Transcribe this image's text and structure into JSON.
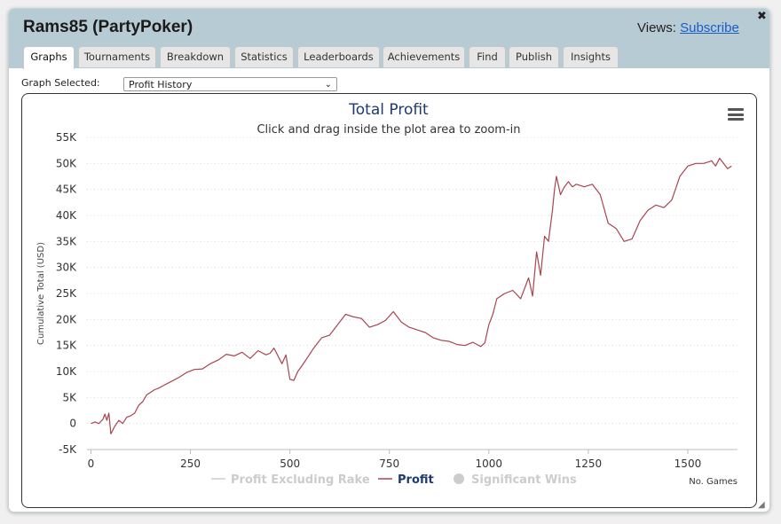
{
  "window": {
    "title": "Rams85 (PartyPoker)",
    "views_label": "Views:",
    "subscribe_link": "Subscribe",
    "close_glyph": "✖"
  },
  "tabs": [
    {
      "label": "Graphs",
      "active": true
    },
    {
      "label": "Tournaments"
    },
    {
      "label": "Breakdown"
    },
    {
      "label": "Statistics"
    },
    {
      "label": "Leaderboards"
    },
    {
      "label": "Achievements"
    },
    {
      "label": "Find"
    },
    {
      "label": "Publish"
    },
    {
      "label": "Insights"
    }
  ],
  "graph_selector": {
    "label": "Graph Selected:",
    "value": "Profit History"
  },
  "chart_data": {
    "type": "line",
    "title": "Total Profit",
    "subtitle": "Click and drag inside the plot area to zoom-in",
    "ylabel": "Cumulative Total (USD)",
    "xlabel": "No. Games",
    "ylim": [
      -5000,
      55000
    ],
    "xlim": [
      -10,
      1625
    ],
    "y_ticks": [
      -5000,
      0,
      5000,
      10000,
      15000,
      20000,
      25000,
      30000,
      35000,
      40000,
      45000,
      50000,
      55000
    ],
    "y_tick_labels": [
      "-5K",
      "0",
      "5K",
      "10K",
      "15K",
      "20K",
      "25K",
      "30K",
      "35K",
      "40K",
      "45K",
      "50K",
      "55K"
    ],
    "x_ticks": [
      0,
      250,
      500,
      750,
      1000,
      1250,
      1500
    ],
    "x_tick_labels": [
      "0",
      "250",
      "500",
      "750",
      "1000",
      "1250",
      "1500"
    ],
    "grid": "horizontal dotted",
    "legend_position": "bottom",
    "legend": [
      {
        "name": "Profit Excluding Rake",
        "color": "#cccccc",
        "symbol": "line",
        "hidden": true
      },
      {
        "name": "Profit",
        "color": "#a84550",
        "symbol": "line",
        "hidden": false
      },
      {
        "name": "Significant Wins",
        "color": "#cccccc",
        "symbol": "circle",
        "hidden": true
      }
    ],
    "series": [
      {
        "name": "Profit",
        "color": "#a84550",
        "x": [
          0,
          10,
          20,
          30,
          35,
          40,
          45,
          50,
          60,
          70,
          80,
          90,
          100,
          110,
          120,
          130,
          140,
          150,
          160,
          170,
          180,
          200,
          220,
          240,
          260,
          280,
          300,
          320,
          340,
          360,
          380,
          400,
          420,
          440,
          450,
          460,
          480,
          490,
          500,
          510,
          520,
          540,
          560,
          580,
          600,
          620,
          640,
          660,
          680,
          700,
          720,
          740,
          760,
          780,
          800,
          820,
          840,
          860,
          880,
          900,
          920,
          940,
          960,
          970,
          980,
          990,
          1000,
          1010,
          1020,
          1040,
          1060,
          1080,
          1100,
          1110,
          1120,
          1130,
          1140,
          1150,
          1160,
          1165,
          1170,
          1180,
          1190,
          1200,
          1210,
          1220,
          1240,
          1260,
          1280,
          1300,
          1320,
          1340,
          1360,
          1380,
          1400,
          1420,
          1440,
          1460,
          1480,
          1500,
          1520,
          1540,
          1560,
          1570,
          1580,
          1590,
          1600,
          1610
        ],
        "y": [
          0,
          300,
          0,
          800,
          1800,
          600,
          2000,
          -2000,
          -500,
          600,
          0,
          1200,
          1500,
          2000,
          3500,
          4200,
          5500,
          6000,
          6500,
          6800,
          7200,
          8000,
          8800,
          9800,
          10400,
          10500,
          11500,
          12200,
          13300,
          13000,
          13700,
          12500,
          14000,
          13200,
          13500,
          14500,
          11500,
          13200,
          8500,
          8300,
          10000,
          12200,
          14500,
          16500,
          17000,
          19000,
          21000,
          20500,
          20200,
          18500,
          19000,
          19800,
          21500,
          19500,
          18500,
          18000,
          17500,
          16500,
          16000,
          15800,
          15200,
          15000,
          15600,
          15200,
          14800,
          15500,
          19000,
          21000,
          24000,
          25000,
          25600,
          24000,
          28000,
          24500,
          33000,
          28500,
          36000,
          35000,
          41000,
          45000,
          47500,
          44000,
          45500,
          46500,
          45500,
          46000,
          45500,
          46000,
          44000,
          38500,
          37500,
          35000,
          35500,
          39000,
          41000,
          42000,
          41500,
          43000,
          47500,
          49500,
          50000,
          50000,
          50500,
          49500,
          51000,
          50000,
          49000,
          49500
        ]
      }
    ]
  }
}
